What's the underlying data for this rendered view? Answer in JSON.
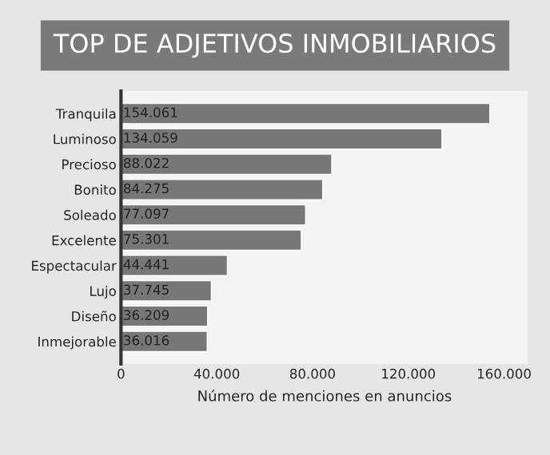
{
  "chart_data": {
    "type": "bar",
    "orientation": "horizontal",
    "title": "TOP DE ADJETIVOS INMOBILIARIOS",
    "xlabel": "Número de menciones en anuncios",
    "categories": [
      "Tranquila",
      "Luminoso",
      "Precioso",
      "Bonito",
      "Soleado",
      "Excelente",
      "Espectacular",
      "Lujo",
      "Diseño",
      "Inmejorable"
    ],
    "values": [
      154061,
      134059,
      88022,
      84275,
      77097,
      75301,
      44441,
      37745,
      36209,
      36016
    ],
    "value_labels": [
      "154.061",
      "134.059",
      "88.022",
      "84.275",
      "77.097",
      "75.301",
      "44.441",
      "37.745",
      "36.209",
      "36.016"
    ],
    "color": "#777777",
    "xlim": [
      0,
      170000
    ],
    "xticks": [
      0,
      {
        "value": 40000,
        "label": "40.000"
      },
      {
        "value": 80000,
        "label": "80.000"
      },
      {
        "value": 120000,
        "label": "120.000"
      },
      {
        "value": 160000,
        "label": "160.000"
      }
    ],
    "grid": false,
    "legend": false
  }
}
